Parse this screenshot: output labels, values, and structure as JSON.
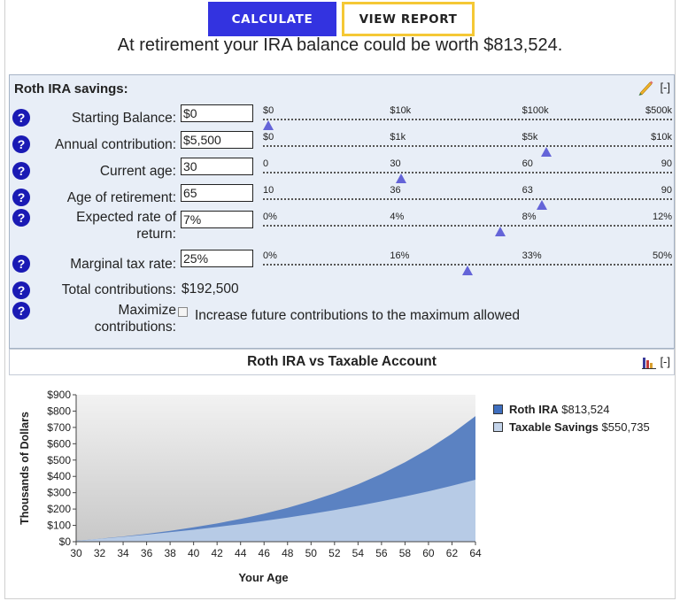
{
  "buttons": {
    "calculate": "CALCULATE",
    "view_report": "VIEW REPORT"
  },
  "headline": "At retirement your IRA balance could be worth $813,524.",
  "panel": {
    "title": "Roth IRA savings:",
    "collapse": "[-]",
    "help_glyph": "?",
    "fields": {
      "starting_balance": {
        "label": "Starting Balance:",
        "value": "$0",
        "ticks": [
          "$0",
          "$10k",
          "$100k",
          "$500k"
        ],
        "slider_fraction": 0.0
      },
      "annual_contribution": {
        "label": "Annual contribution:",
        "value": "$5,500",
        "ticks": [
          "$0",
          "$1k",
          "$5k",
          "$10k"
        ],
        "slider_fraction": 0.697
      },
      "current_age": {
        "label": "Current age:",
        "value": "30",
        "ticks": [
          "0",
          "30",
          "60",
          "90"
        ],
        "slider_fraction": 0.333
      },
      "retirement_age": {
        "label": "Age of retirement:",
        "value": "65",
        "ticks": [
          "10",
          "36",
          "63",
          "90"
        ],
        "slider_fraction": 0.687
      },
      "rate_of_return": {
        "label_line1": "Expected rate of",
        "label_line2": "return:",
        "value": "7%",
        "ticks": [
          "0%",
          "4%",
          "8%",
          "12%"
        ],
        "slider_fraction": 0.583
      },
      "tax_rate": {
        "label": "Marginal tax rate:",
        "value": "25%",
        "ticks": [
          "0%",
          "16%",
          "33%",
          "50%"
        ],
        "slider_fraction": 0.5
      }
    },
    "total_contributions": {
      "label": "Total contributions:",
      "value": "$192,500"
    },
    "maximize": {
      "label_line1": "Maximize",
      "label_line2": "contributions:",
      "checked": false,
      "description": "Increase future contributions to the maximum allowed"
    }
  },
  "chart_section": {
    "title": "Roth IRA vs Taxable Account",
    "collapse": "[-]"
  },
  "chart_data": {
    "type": "area",
    "title": "",
    "xlabel": "Your Age",
    "ylabel": "Thousands of Dollars",
    "x": [
      30,
      32,
      34,
      36,
      38,
      40,
      42,
      44,
      46,
      48,
      50,
      52,
      54,
      56,
      58,
      60,
      62,
      64
    ],
    "x_tick_labels": [
      "30",
      "32",
      "34",
      "36",
      "38",
      "40",
      "42",
      "44",
      "46",
      "48",
      "50",
      "52",
      "54",
      "56",
      "58",
      "60",
      "62",
      "64"
    ],
    "y_tick_labels": [
      "$0",
      "$100",
      "$200",
      "$300",
      "$400",
      "$500",
      "$600",
      "$700",
      "$800",
      "$900"
    ],
    "xlim": [
      30,
      64
    ],
    "ylim": [
      0,
      900
    ],
    "grid": false,
    "legend_position": "right",
    "series": [
      {
        "name": "Roth IRA",
        "legend_value": "$813,524",
        "color": "#5b82c2",
        "values": [
          5.5,
          17.8,
          31.9,
          48.0,
          66.5,
          87.7,
          111.9,
          139.7,
          171.5,
          207.9,
          249.5,
          297.3,
          351.9,
          414.5,
          486.1,
          568.1,
          662.0,
          769.5
        ]
      },
      {
        "name": "Taxable Savings",
        "legend_value": "$550,735",
        "color": "#b7cbe6",
        "values": [
          5.5,
          17.2,
          29.8,
          43.3,
          57.8,
          73.4,
          90.1,
          108.0,
          127.3,
          148.0,
          170.2,
          194.1,
          219.7,
          247.3,
          276.9,
          308.7,
          342.8,
          379.4
        ]
      }
    ]
  }
}
